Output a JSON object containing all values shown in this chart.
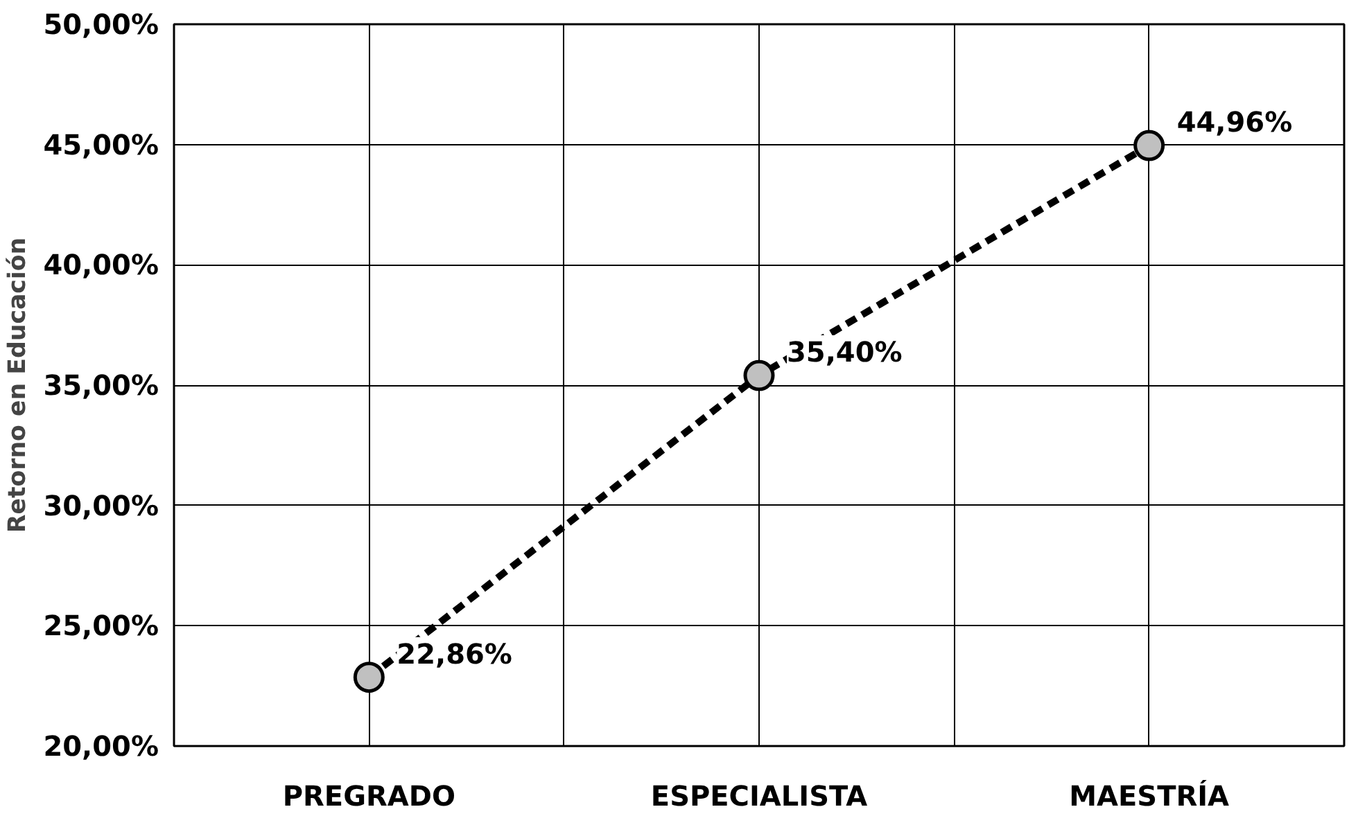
{
  "chart_data": {
    "type": "line",
    "ylabel": "Retorno en Educación",
    "categories": [
      "PREGRADO",
      "ESPECIALISTA",
      "MAESTRÍA"
    ],
    "series": [
      {
        "color": "#000000",
        "values": [
          22.86,
          35.4,
          44.96
        ],
        "value_labels": [
          "22,86%",
          "35,40%",
          "44,96%"
        ]
      }
    ],
    "ylim": [
      20,
      50
    ],
    "yticks": [
      {
        "value": 20,
        "label": "20,00%"
      },
      {
        "value": 25,
        "label": "25,00%"
      },
      {
        "value": 30,
        "label": "30,00%"
      },
      {
        "value": 35,
        "label": "35,00%"
      },
      {
        "value": 40,
        "label": "40,00%"
      },
      {
        "value": 45,
        "label": "45,00%"
      },
      {
        "value": 50,
        "label": "50,00%"
      }
    ],
    "grid": true,
    "marker": "circle",
    "line_style": "dashed"
  }
}
